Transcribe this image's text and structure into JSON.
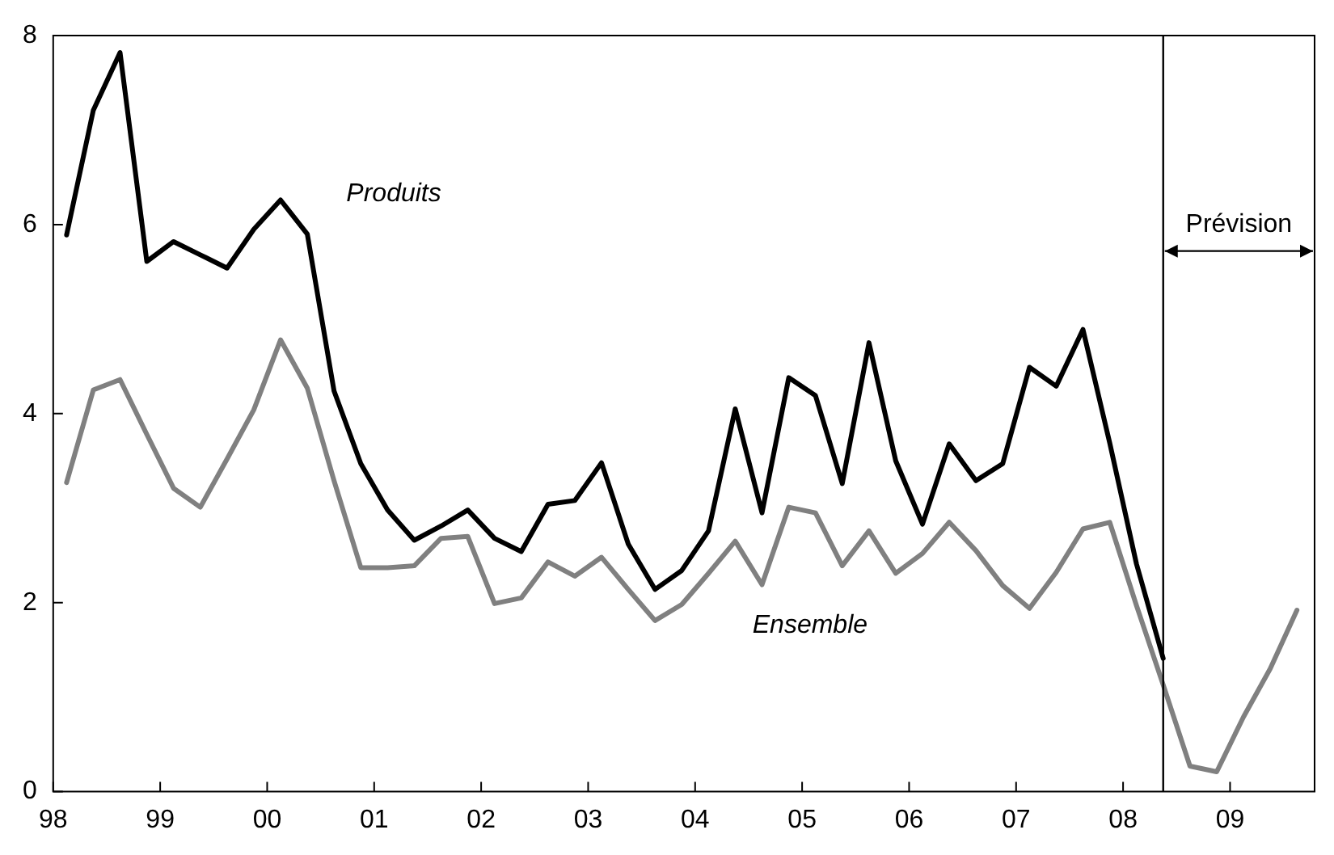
{
  "chart_data": {
    "type": "line",
    "x": [
      1998.125,
      1998.375,
      1998.625,
      1998.875,
      1999.125,
      1999.375,
      1999.625,
      1999.875,
      2000.125,
      2000.375,
      2000.625,
      2000.875,
      2001.125,
      2001.375,
      2001.625,
      2001.875,
      2002.125,
      2002.375,
      2002.625,
      2002.875,
      2003.125,
      2003.375,
      2003.625,
      2003.875,
      2004.125,
      2004.375,
      2004.625,
      2004.875,
      2005.125,
      2005.375,
      2005.625,
      2005.875,
      2006.125,
      2006.375,
      2006.625,
      2006.875,
      2007.125,
      2007.375,
      2007.625,
      2007.875,
      2008.125,
      2008.375,
      2008.625,
      2008.875,
      2009.125,
      2009.375,
      2009.625
    ],
    "series": [
      {
        "name": "Produits",
        "color": "#000000",
        "values": [
          5.89,
          7.21,
          7.82,
          5.61,
          5.82,
          5.68,
          5.54,
          5.95,
          6.26,
          5.9,
          4.24,
          3.47,
          2.98,
          2.66,
          2.81,
          2.98,
          2.68,
          2.54,
          3.04,
          3.08,
          3.48,
          2.62,
          2.14,
          2.34,
          2.76,
          4.05,
          2.95,
          4.38,
          4.19,
          3.26,
          4.75,
          3.5,
          2.83,
          3.68,
          3.29,
          3.47,
          4.49,
          4.29,
          4.89,
          3.69,
          2.41,
          1.41,
          null,
          null,
          null,
          null,
          null
        ]
      },
      {
        "name": "Ensemble",
        "color": "#808080",
        "values": [
          3.27,
          4.25,
          4.36,
          3.78,
          3.21,
          3.01,
          3.52,
          4.04,
          4.78,
          4.27,
          3.29,
          2.37,
          2.37,
          2.39,
          2.68,
          2.7,
          1.99,
          2.05,
          2.43,
          2.28,
          2.48,
          2.14,
          1.81,
          1.98,
          2.31,
          2.65,
          2.19,
          3.01,
          2.95,
          2.39,
          2.76,
          2.31,
          2.52,
          2.85,
          2.55,
          2.18,
          1.94,
          2.32,
          2.78,
          2.85,
          1.97,
          1.13,
          0.27,
          0.21,
          0.79,
          1.3,
          1.92
        ]
      }
    ],
    "xlim": [
      1998,
      2009.79
    ],
    "xticks": [
      {
        "value": 1998,
        "label": "98"
      },
      {
        "value": 1999,
        "label": "99"
      },
      {
        "value": 2000,
        "label": "00"
      },
      {
        "value": 2001,
        "label": "01"
      },
      {
        "value": 2002,
        "label": "02"
      },
      {
        "value": 2003,
        "label": "03"
      },
      {
        "value": 2004,
        "label": "04"
      },
      {
        "value": 2005,
        "label": "05"
      },
      {
        "value": 2006,
        "label": "06"
      },
      {
        "value": 2007,
        "label": "07"
      },
      {
        "value": 2008,
        "label": "08"
      },
      {
        "value": 2009,
        "label": "09"
      }
    ],
    "ylim": [
      0,
      8
    ],
    "yticks": [
      0,
      2,
      4,
      6,
      8
    ],
    "ref_lines": [
      {
        "axis": "x",
        "value": 2008.375,
        "label": "Prévision",
        "color": "#000000"
      }
    ],
    "marker": "none",
    "line_style": "solid",
    "legend": false
  }
}
